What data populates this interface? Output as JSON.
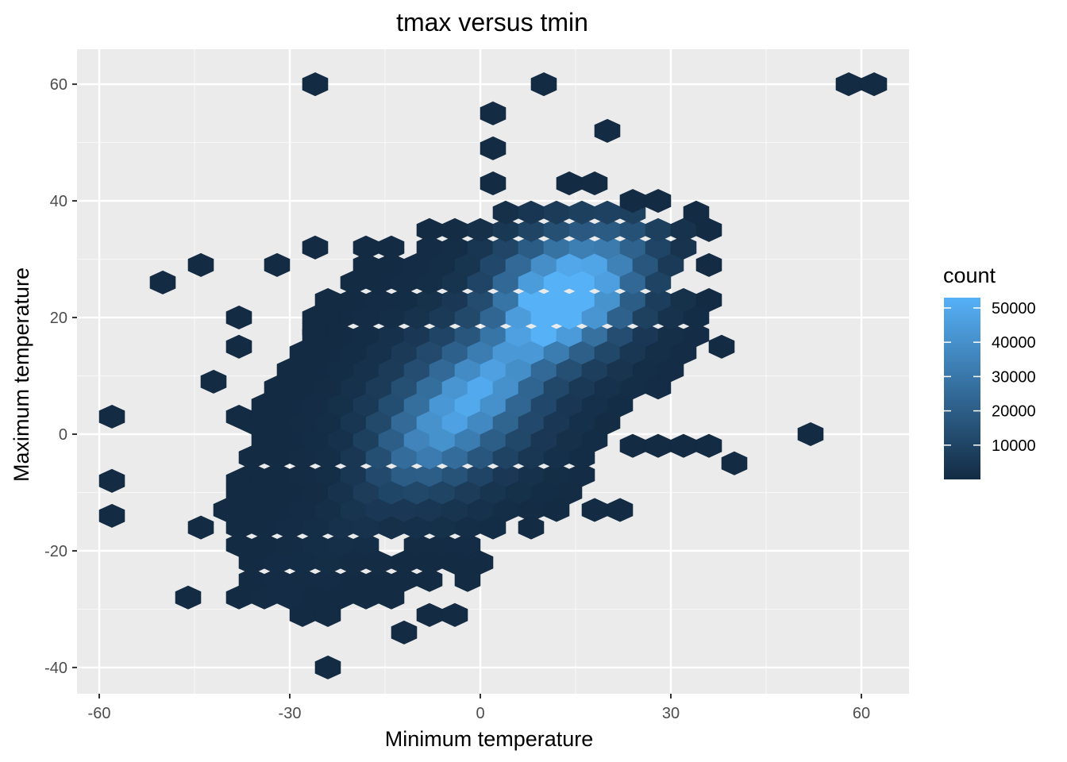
{
  "chart_data": {
    "type": "hexbin",
    "title": "tmax versus tmin",
    "xlabel": "Minimum temperature",
    "ylabel": "Maximum temperature",
    "xlim": [
      -63.5,
      67.5
    ],
    "ylim": [
      -44.5,
      66.0
    ],
    "x_ticks": [
      -60,
      -30,
      0,
      30,
      60
    ],
    "x_tick_labels": [
      "-60",
      "-30",
      "0",
      "30",
      "60"
    ],
    "y_ticks": [
      -40,
      -20,
      0,
      20,
      40,
      60
    ],
    "y_tick_labels": [
      "-40",
      "-20",
      "0",
      "20",
      "40",
      "60"
    ],
    "hex_width": 4.0,
    "colorscale": {
      "low": "#132B43",
      "high": "#56B1F7",
      "min": 1,
      "max": 53000
    },
    "legend": {
      "title": "count",
      "breaks": [
        10000,
        20000,
        30000,
        40000,
        50000
      ],
      "labels": [
        "10000",
        "20000",
        "30000",
        "40000",
        "50000"
      ]
    },
    "dense_region": {
      "x_range": [
        -42,
        38
      ],
      "row_y_values": [
        -28,
        -25,
        -22,
        -19,
        -16,
        -13,
        -10,
        -7,
        -4,
        -1,
        2,
        5,
        8,
        11,
        14,
        17,
        20,
        23,
        26,
        29,
        32,
        35,
        38
      ],
      "row_x_min": [
        -38,
        -36,
        -36,
        -38,
        -38,
        -40,
        -38,
        -36,
        -36,
        -34,
        -36,
        -34,
        -32,
        -30,
        -28,
        -26,
        -26,
        -24,
        -20,
        -18,
        -8,
        -4,
        4
      ],
      "row_x_max": [
        -12,
        -8,
        -4,
        -2,
        4,
        12,
        14,
        16,
        18,
        20,
        22,
        24,
        28,
        32,
        34,
        34,
        34,
        32,
        30,
        32,
        34,
        36,
        26
      ]
    },
    "holes": [
      [
        -24,
        18
      ],
      [
        -14,
        -19
      ]
    ],
    "isolated_points": [
      [
        -26,
        60
      ],
      [
        10,
        60
      ],
      [
        58,
        60
      ],
      [
        62,
        60
      ],
      [
        2,
        55
      ],
      [
        20,
        52
      ],
      [
        2,
        49
      ],
      [
        2,
        43
      ],
      [
        -26,
        32
      ],
      [
        -44,
        29
      ],
      [
        -32,
        29
      ],
      [
        -50,
        26
      ],
      [
        -38,
        20
      ],
      [
        -38,
        15
      ],
      [
        -42,
        9
      ],
      [
        -58,
        3
      ],
      [
        -58,
        -8
      ],
      [
        -58,
        -14
      ],
      [
        -44,
        -16
      ],
      [
        -46,
        -28
      ],
      [
        -24,
        -40
      ],
      [
        -12,
        -34
      ],
      [
        -8,
        -31
      ],
      [
        -4,
        -31
      ],
      [
        -2,
        -25
      ],
      [
        -12,
        -25
      ],
      [
        0,
        -22
      ],
      [
        8,
        -16
      ],
      [
        18,
        -13
      ],
      [
        22,
        -13
      ],
      [
        52,
        0
      ],
      [
        40,
        -5
      ],
      [
        36,
        -2
      ],
      [
        32,
        -2
      ],
      [
        28,
        -2
      ],
      [
        24,
        -2
      ],
      [
        38,
        15
      ],
      [
        36,
        23
      ],
      [
        36,
        29
      ],
      [
        36,
        35
      ],
      [
        34,
        38
      ],
      [
        28,
        40
      ],
      [
        24,
        40
      ],
      [
        18,
        43
      ],
      [
        14,
        43
      ],
      [
        -8,
        35
      ],
      [
        -18,
        32
      ],
      [
        -14,
        32
      ],
      [
        -24,
        20
      ],
      [
        -26,
        18
      ],
      [
        -38,
        3
      ],
      [
        -38,
        -8
      ],
      [
        -24,
        -31
      ],
      [
        -28,
        -31
      ]
    ],
    "density_peaks": [
      {
        "x": 12,
        "y": 23,
        "count": 53000,
        "spread": 6.5
      },
      {
        "x": 0,
        "y": 8,
        "count": 28000,
        "spread": 7.0
      },
      {
        "x": -8,
        "y": -1,
        "count": 22000,
        "spread": 6.5
      },
      {
        "x": 20,
        "y": 29,
        "count": 18000,
        "spread": 6.0
      }
    ],
    "ridge": {
      "slope": 1.0,
      "intercept": 8,
      "count": 18000,
      "width": 3.5
    }
  }
}
